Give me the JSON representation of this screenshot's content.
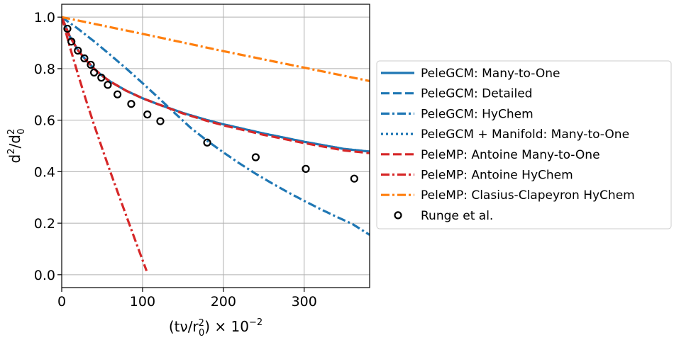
{
  "chart_data": {
    "type": "line",
    "title": "",
    "xlabel_parts": [
      "(tν/r",
      "0",
      "2",
      ") × 10",
      "−2"
    ],
    "ylabel_parts": [
      "d",
      "2",
      "/d",
      "0",
      "2"
    ],
    "xlim": [
      0,
      381
    ],
    "ylim": [
      -0.05,
      1.05
    ],
    "xticks": [
      0,
      100,
      200,
      300
    ],
    "yticks": [
      0.0,
      0.2,
      0.4,
      0.6,
      0.8,
      1.0
    ],
    "xtick_labels": [
      "0",
      "100",
      "200",
      "300"
    ],
    "ytick_labels": [
      "0.0",
      "0.2",
      "0.4",
      "0.6",
      "0.8",
      "1.0"
    ],
    "grid": true,
    "legend_position": "outside-right",
    "series": [
      {
        "name": "PeleGCM: Many-to-One",
        "color": "#1f77b4",
        "style": "solid",
        "x": [
          0,
          10,
          20,
          30,
          40,
          50,
          60,
          80,
          100,
          120,
          150,
          180,
          200,
          250,
          300,
          350,
          381
        ],
        "y": [
          1.0,
          0.925,
          0.872,
          0.833,
          0.8,
          0.772,
          0.75,
          0.714,
          0.685,
          0.661,
          0.628,
          0.6,
          0.584,
          0.548,
          0.516,
          0.488,
          0.478
        ]
      },
      {
        "name": "PeleGCM: Detailed",
        "color": "#1f77b4",
        "style": "dashed",
        "x": [
          0,
          10,
          20,
          30,
          40,
          50,
          60,
          80,
          100,
          120,
          150,
          180,
          200,
          250,
          300,
          350,
          381
        ],
        "y": [
          1.0,
          0.925,
          0.872,
          0.833,
          0.8,
          0.772,
          0.75,
          0.714,
          0.685,
          0.661,
          0.628,
          0.6,
          0.584,
          0.548,
          0.516,
          0.488,
          0.478
        ]
      },
      {
        "name": "PeleGCM: HyChem",
        "color": "#1f77b4",
        "style": "dashdot",
        "x": [
          0,
          20,
          40,
          60,
          80,
          100,
          120,
          140,
          160,
          180,
          200,
          220,
          240,
          260,
          280,
          300,
          320,
          340,
          360,
          381
        ],
        "y": [
          1.0,
          0.955,
          0.906,
          0.854,
          0.8,
          0.744,
          0.686,
          0.627,
          0.569,
          0.52,
          0.475,
          0.432,
          0.392,
          0.355,
          0.32,
          0.287,
          0.255,
          0.225,
          0.196,
          0.155
        ]
      },
      {
        "name": "PeleGCM + Manifold: Many-to-One",
        "color": "#1f77b4",
        "style": "dotted",
        "x": [
          0,
          10,
          20,
          30,
          40,
          50,
          60,
          80,
          100,
          120,
          150,
          180,
          200,
          250,
          300,
          350,
          381
        ],
        "y": [
          1.0,
          0.925,
          0.872,
          0.833,
          0.8,
          0.772,
          0.75,
          0.714,
          0.685,
          0.661,
          0.628,
          0.6,
          0.584,
          0.548,
          0.516,
          0.488,
          0.478
        ]
      },
      {
        "name": "PeleMP: Antoine Many-to-One",
        "color": "#d62728",
        "style": "dashed",
        "x": [
          0,
          10,
          20,
          30,
          40,
          50,
          60,
          80,
          100,
          120,
          150,
          180,
          200,
          250,
          300,
          350,
          381
        ],
        "y": [
          1.0,
          0.925,
          0.872,
          0.833,
          0.8,
          0.772,
          0.75,
          0.714,
          0.685,
          0.661,
          0.626,
          0.597,
          0.58,
          0.543,
          0.511,
          0.482,
          0.472
        ]
      },
      {
        "name": "PeleMP: Antoine HyChem",
        "color": "#d62728",
        "style": "dashdot",
        "x": [
          0,
          10,
          20,
          30,
          40,
          50,
          60,
          70,
          80,
          90,
          100,
          105
        ],
        "y": [
          1.0,
          0.885,
          0.779,
          0.678,
          0.582,
          0.49,
          0.401,
          0.314,
          0.228,
          0.142,
          0.057,
          0.015
        ]
      },
      {
        "name": "PeleMP: Clasius-Clapeyron HyChem",
        "color": "#ff7f0e",
        "style": "dashdot",
        "x": [
          0,
          100,
          200,
          300,
          381
        ],
        "y": [
          1.0,
          0.935,
          0.868,
          0.804,
          0.752
        ]
      },
      {
        "name": "Runge et al.",
        "color": "#000000",
        "style": "markers",
        "x": [
          7,
          12,
          20,
          28,
          36,
          40,
          49,
          57,
          69,
          86,
          106,
          122,
          180,
          240,
          302,
          362
        ],
        "y": [
          0.955,
          0.905,
          0.87,
          0.84,
          0.815,
          0.785,
          0.765,
          0.737,
          0.7,
          0.663,
          0.622,
          0.596,
          0.513,
          0.456,
          0.411,
          0.373
        ]
      }
    ]
  }
}
